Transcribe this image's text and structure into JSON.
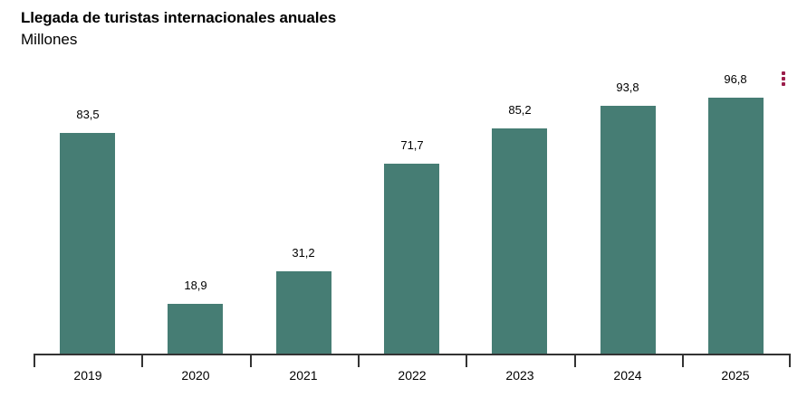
{
  "header": {
    "title": "Llegada de turistas internacionales anuales",
    "subtitle": "Millones"
  },
  "menu": {
    "icon": "kebab-menu-icon",
    "color": "#9b1d4a"
  },
  "labels": [
    "83,5",
    "18,9",
    "31,2",
    "71,7",
    "85,2",
    "93,8",
    "96,8"
  ],
  "categories": [
    "2019",
    "2020",
    "2021",
    "2022",
    "2023",
    "2024",
    "2025"
  ],
  "chart_data": {
    "type": "bar",
    "title": "Llegada de turistas internacionales anuales",
    "subtitle": "Millones",
    "categories": [
      "2019",
      "2020",
      "2021",
      "2022",
      "2023",
      "2024",
      "2025"
    ],
    "values": [
      83.5,
      18.9,
      31.2,
      71.7,
      85.2,
      93.8,
      96.8
    ],
    "xlabel": "",
    "ylabel": "Millones",
    "ylim": [
      0,
      100
    ],
    "grid": false,
    "legend": null,
    "bar_color": "#467d74"
  }
}
